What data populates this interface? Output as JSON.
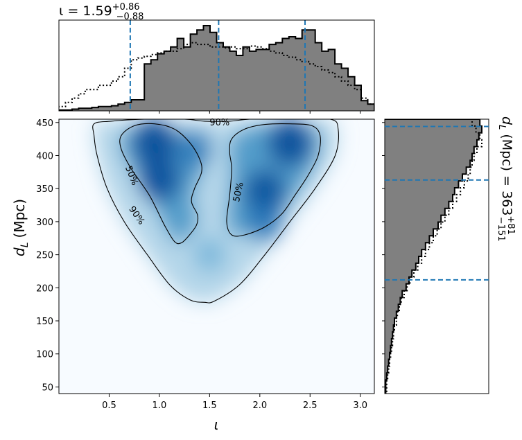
{
  "chart_data": [
    {
      "type": "heatmap",
      "panel": "joint-posterior",
      "xlabel": "ι",
      "ylabel_main": "d",
      "ylabel_sub": "L",
      "ylabel_unit": "(Mpc)",
      "xlim": [
        0.0,
        3.14
      ],
      "ylim": [
        40,
        455
      ],
      "xticks": [
        "0.5",
        "1.0",
        "1.5",
        "2.0",
        "2.5",
        "3.0"
      ],
      "yticks": [
        "50",
        "100",
        "150",
        "200",
        "250",
        "300",
        "350",
        "400",
        "450"
      ],
      "colormap": "Blues",
      "density_peaks": [
        {
          "x": 0.95,
          "y": 420,
          "weight": 1.0
        },
        {
          "x": 1.0,
          "y": 365,
          "weight": 0.9
        },
        {
          "x": 1.35,
          "y": 410,
          "weight": 0.55
        },
        {
          "x": 2.3,
          "y": 420,
          "weight": 1.0
        },
        {
          "x": 2.05,
          "y": 345,
          "weight": 0.85
        },
        {
          "x": 2.05,
          "y": 300,
          "weight": 0.6
        },
        {
          "x": 1.5,
          "y": 250,
          "weight": 0.35
        }
      ],
      "contour_levels": [
        "50%",
        "90%"
      ],
      "contours": {
        "ninety": [
          [
            0.35,
            448
          ],
          [
            0.52,
            452
          ],
          [
            0.85,
            455
          ],
          [
            1.25,
            455
          ],
          [
            1.45,
            452
          ],
          [
            1.7,
            452
          ],
          [
            1.9,
            455
          ],
          [
            2.3,
            456
          ],
          [
            2.7,
            455
          ],
          [
            2.78,
            440
          ],
          [
            2.75,
            400
          ],
          [
            2.55,
            350
          ],
          [
            2.3,
            300
          ],
          [
            2.05,
            250
          ],
          [
            1.8,
            205
          ],
          [
            1.55,
            180
          ],
          [
            1.45,
            178
          ],
          [
            1.3,
            182
          ],
          [
            1.1,
            205
          ],
          [
            0.88,
            250
          ],
          [
            0.65,
            300
          ],
          [
            0.48,
            350
          ],
          [
            0.38,
            400
          ],
          [
            0.35,
            430
          ]
        ],
        "fifty_left": [
          [
            0.62,
            430
          ],
          [
            0.75,
            445
          ],
          [
            0.95,
            448
          ],
          [
            1.15,
            440
          ],
          [
            1.3,
            420
          ],
          [
            1.4,
            395
          ],
          [
            1.42,
            375
          ],
          [
            1.35,
            350
          ],
          [
            1.32,
            330
          ],
          [
            1.38,
            310
          ],
          [
            1.37,
            295
          ],
          [
            1.3,
            280
          ],
          [
            1.22,
            268
          ],
          [
            1.15,
            270
          ],
          [
            1.05,
            295
          ],
          [
            0.9,
            340
          ],
          [
            0.72,
            380
          ],
          [
            0.62,
            410
          ]
        ],
        "fifty_right": [
          [
            1.72,
            425
          ],
          [
            1.85,
            440
          ],
          [
            2.05,
            447
          ],
          [
            2.3,
            448
          ],
          [
            2.52,
            445
          ],
          [
            2.6,
            430
          ],
          [
            2.58,
            400
          ],
          [
            2.48,
            370
          ],
          [
            2.35,
            340
          ],
          [
            2.22,
            312
          ],
          [
            2.05,
            292
          ],
          [
            1.85,
            280
          ],
          [
            1.72,
            280
          ],
          [
            1.67,
            300
          ],
          [
            1.7,
            340
          ],
          [
            1.72,
            380
          ],
          [
            1.7,
            405
          ]
        ]
      },
      "contour_label_texts": [
        "90%",
        "50%",
        "50%",
        "90%"
      ],
      "contour_label_anchors": [
        [
          1.6,
          451
        ],
        [
          0.73,
          370
        ],
        [
          1.78,
          345
        ],
        [
          0.78,
          310
        ]
      ],
      "contour_label_rotations": [
        0,
        68,
        -78,
        55
      ]
    },
    {
      "type": "histogram",
      "panel": "iota-marginal",
      "title_prefix": "ι = 1.59",
      "title_sup": "+0.86",
      "title_sub": "−0.88",
      "xlim": [
        0.0,
        3.14
      ],
      "bin_edges": [
        0.0,
        3.14
      ],
      "bins": 48,
      "filled_heights": [
        0.01,
        0.01,
        0.02,
        0.03,
        0.03,
        0.04,
        0.05,
        0.05,
        0.06,
        0.08,
        0.1,
        0.13,
        0.13,
        0.55,
        0.6,
        0.67,
        0.7,
        0.75,
        0.85,
        0.75,
        0.9,
        0.95,
        1.0,
        0.92,
        0.8,
        0.75,
        0.7,
        0.65,
        0.75,
        0.7,
        0.72,
        0.72,
        0.78,
        0.8,
        0.85,
        0.87,
        0.85,
        0.95,
        0.95,
        0.8,
        0.7,
        0.72,
        0.55,
        0.5,
        0.4,
        0.3,
        0.12,
        0.08
      ],
      "dotted_heights": [
        0.05,
        0.1,
        0.15,
        0.2,
        0.25,
        0.25,
        0.3,
        0.3,
        0.35,
        0.4,
        0.5,
        0.6,
        0.62,
        0.64,
        0.66,
        0.68,
        0.7,
        0.7,
        0.73,
        0.78,
        0.8,
        0.78,
        0.78,
        0.75,
        0.75,
        0.74,
        0.75,
        0.73,
        0.73,
        0.76,
        0.75,
        0.73,
        0.7,
        0.68,
        0.65,
        0.63,
        0.6,
        0.58,
        0.55,
        0.52,
        0.48,
        0.45,
        0.4,
        0.35,
        0.3,
        0.25,
        0.15,
        0.08
      ],
      "ymax": 1.0,
      "quantile_lines_x": [
        0.71,
        1.59,
        2.45
      ],
      "fill_color": "#808080",
      "line_color": "#1f77b4"
    },
    {
      "type": "histogram",
      "panel": "dL-marginal",
      "orientation": "horizontal",
      "side_label_main": "d",
      "side_label_sub": "L",
      "side_label_text": " (Mpc) = 363",
      "side_label_sup": "+81",
      "side_label_subscript": "−151",
      "ylim": [
        40,
        455
      ],
      "bins": 40,
      "filled_widths": [
        0.01,
        0.01,
        0.02,
        0.03,
        0.04,
        0.05,
        0.06,
        0.07,
        0.08,
        0.09,
        0.1,
        0.12,
        0.14,
        0.16,
        0.18,
        0.22,
        0.25,
        0.28,
        0.32,
        0.35,
        0.38,
        0.42,
        0.46,
        0.5,
        0.55,
        0.58,
        0.62,
        0.66,
        0.7,
        0.72,
        0.76,
        0.8,
        0.84,
        0.88,
        0.9,
        0.92,
        0.95,
        0.97,
        1.0,
        0.98
      ],
      "dotted_widths": [
        0.02,
        0.02,
        0.03,
        0.04,
        0.05,
        0.06,
        0.07,
        0.08,
        0.09,
        0.1,
        0.12,
        0.13,
        0.15,
        0.17,
        0.2,
        0.23,
        0.26,
        0.3,
        0.34,
        0.38,
        0.42,
        0.46,
        0.5,
        0.54,
        0.58,
        0.62,
        0.66,
        0.7,
        0.74,
        0.78,
        0.82,
        0.86,
        0.88,
        0.9,
        0.92,
        0.95,
        1.0,
        0.98,
        0.94,
        0.9
      ],
      "xmax": 1.0,
      "quantile_lines_y": [
        212,
        363,
        444
      ],
      "fill_color": "#808080",
      "line_color": "#1f77b4"
    }
  ]
}
